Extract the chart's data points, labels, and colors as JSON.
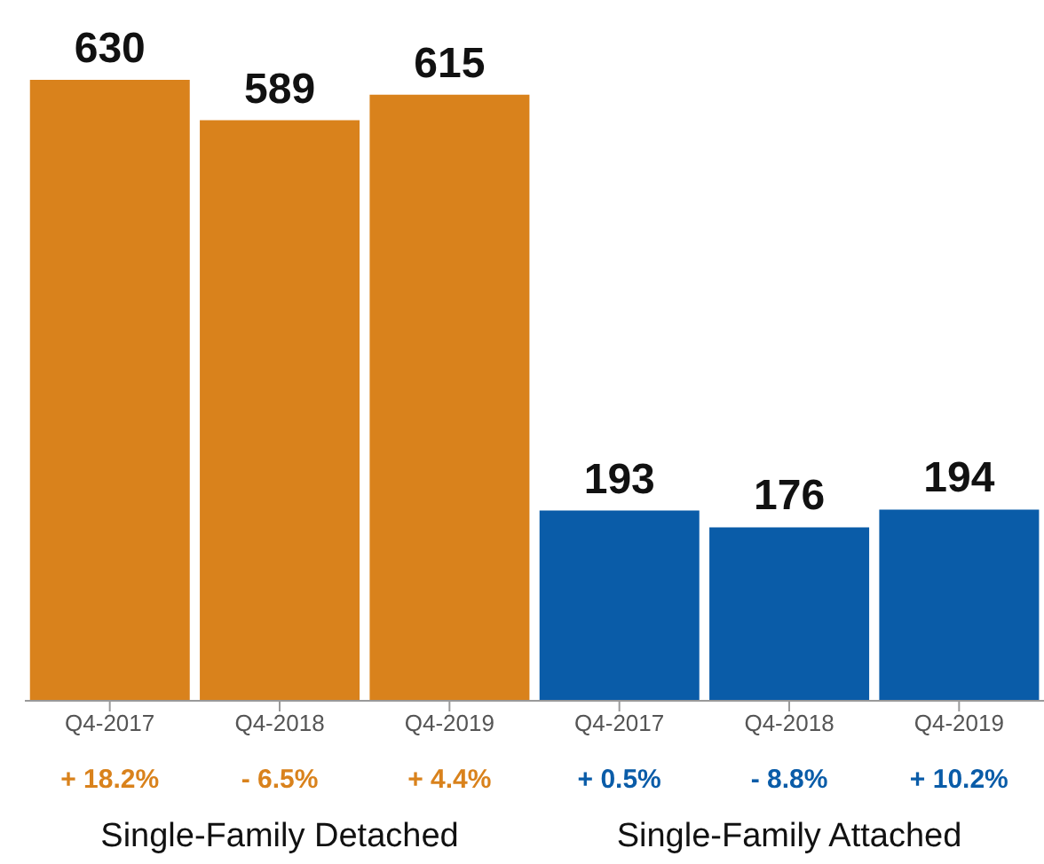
{
  "chart_data": {
    "type": "bar",
    "categories": [
      "Q4-2017",
      "Q4-2018",
      "Q4-2019",
      "Q4-2017",
      "Q4-2018",
      "Q4-2019"
    ],
    "values": [
      630,
      589,
      615,
      193,
      176,
      194
    ],
    "colors": [
      "#d9821c",
      "#d9821c",
      "#d9821c",
      "#0a5ca8",
      "#0a5ca8",
      "#0a5ca8"
    ],
    "data_labels": true,
    "tick_labels": "x",
    "annotations": [
      "+ 18.2%",
      "- 6.5%",
      "+ 4.4%",
      "+ 0.5%",
      "- 8.8%",
      "+ 10.2%",
      "Single-Family Detached",
      "Single-Family Attached"
    ]
  }
}
